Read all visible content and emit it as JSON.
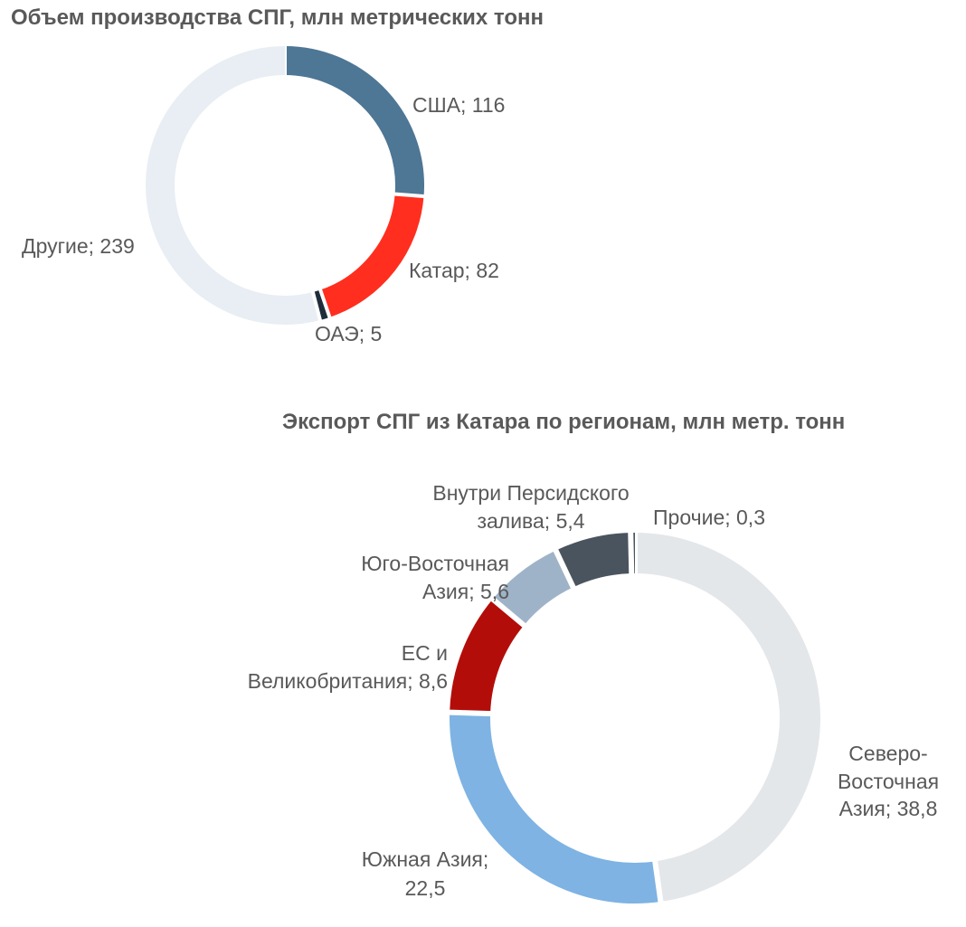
{
  "chart_data": [
    {
      "type": "pie",
      "title": "Объем производства СПГ, млн метрических тонн",
      "slices": [
        {
          "name": "США",
          "value": 116,
          "label": "США; 116",
          "color": "#4E7695"
        },
        {
          "name": "Катар",
          "value": 82,
          "label": "Катар; 82",
          "color": "#FF2E1F"
        },
        {
          "name": "ОАЭ",
          "value": 5,
          "label": "ОАЭ; 5",
          "color": "#1F2D3A"
        },
        {
          "name": "Другие",
          "value": 239,
          "label": "Другие; 239",
          "color": "#E8EEF3"
        }
      ]
    },
    {
      "type": "pie",
      "title": "Экспорт СПГ из Катара по регионам, млн метр. тонн",
      "slices": [
        {
          "name": "Северо-Восточная Азия",
          "value": 38.8,
          "label": [
            "Северо-",
            "Восточная",
            "Азия; 38,8"
          ],
          "color": "#E4E7EA"
        },
        {
          "name": "Южная Азия",
          "value": 22.5,
          "label": [
            "Южная Азия;",
            "22,5"
          ],
          "color": "#7EB3E3"
        },
        {
          "name": "ЕС и Великобритания",
          "value": 8.6,
          "label": [
            "ЕС и",
            "Великобритания; 8,6"
          ],
          "color": "#B30D0A"
        },
        {
          "name": "Юго-Восточная Азия",
          "value": 5.6,
          "label": [
            "Юго-Восточная",
            "Азия; 5,6"
          ],
          "color": "#9FB3C8"
        },
        {
          "name": "Внутри Персидского залива",
          "value": 5.4,
          "label": [
            "Внутри Персидского",
            "залива; 5,4"
          ],
          "color": "#4A545E"
        },
        {
          "name": "Прочие",
          "value": 0.3,
          "label": [
            "Прочие; 0,3"
          ],
          "color": "#4A545E"
        }
      ]
    }
  ]
}
